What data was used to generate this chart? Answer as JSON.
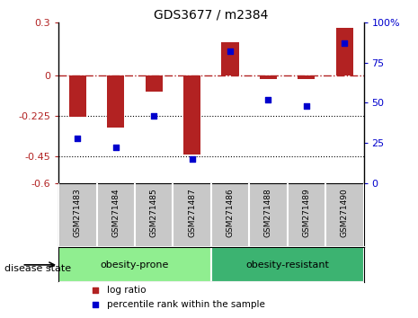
{
  "title": "GDS3677 / m2384",
  "samples": [
    "GSM271483",
    "GSM271484",
    "GSM271485",
    "GSM271487",
    "GSM271486",
    "GSM271488",
    "GSM271489",
    "GSM271490"
  ],
  "log_ratio": [
    -0.23,
    -0.29,
    -0.09,
    -0.44,
    0.19,
    -0.02,
    -0.02,
    0.27
  ],
  "percentile_rank": [
    28,
    22,
    42,
    15,
    82,
    52,
    48,
    87
  ],
  "groups": [
    {
      "label": "obesity-prone",
      "indices": [
        0,
        1,
        2,
        3
      ],
      "color": "#90EE90"
    },
    {
      "label": "obesity-resistant",
      "indices": [
        4,
        5,
        6,
        7
      ],
      "color": "#3CB371"
    }
  ],
  "bar_color": "#B22222",
  "dot_color": "#0000CD",
  "ylim_left": [
    -0.6,
    0.3
  ],
  "ylim_right": [
    0,
    100
  ],
  "yticks_left": [
    -0.6,
    -0.45,
    -0.225,
    0,
    0.3
  ],
  "ytick_labels_left": [
    "-0.6",
    "-0.45",
    "-0.225",
    "0",
    "0.3"
  ],
  "yticks_right": [
    0,
    25,
    50,
    75,
    100
  ],
  "ytick_labels_right": [
    "0",
    "25",
    "50",
    "75",
    "100%"
  ],
  "hlines": [
    -0.225,
    -0.45
  ],
  "disease_state_label": "disease state",
  "legend_items": [
    {
      "label": "log ratio",
      "color": "#B22222"
    },
    {
      "label": "percentile rank within the sample",
      "color": "#0000CD"
    }
  ],
  "background_color": "#ffffff",
  "tick_label_color_left": "#B22222",
  "tick_label_color_right": "#0000CD",
  "sample_box_color": "#C8C8C8",
  "bar_width": 0.45
}
